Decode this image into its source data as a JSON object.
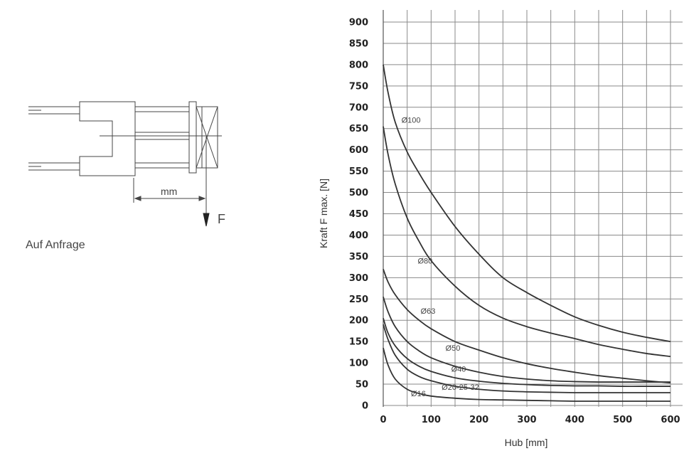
{
  "sketch": {
    "dimension_label": "mm",
    "force_label": "F",
    "note": "Auf Anfrage"
  },
  "chart_data": {
    "type": "line",
    "xlabel": "Hub [mm]",
    "ylabel": "Kraft F max. [N]",
    "xlim": [
      0,
      600
    ],
    "ylim": [
      0,
      900
    ],
    "x_ticks": [
      0,
      100,
      200,
      300,
      400,
      500,
      600
    ],
    "y_ticks": [
      0,
      50,
      100,
      150,
      200,
      250,
      300,
      350,
      400,
      450,
      500,
      550,
      600,
      650,
      700,
      750,
      800,
      850,
      900
    ],
    "x_grid": [
      0,
      50,
      100,
      150,
      200,
      250,
      300,
      350,
      400,
      450,
      500,
      550,
      600
    ],
    "grid": true,
    "series": [
      {
        "name": "Ø100",
        "label_at": [
          38,
          670
        ],
        "x": [
          0,
          10,
          25,
          50,
          75,
          100,
          150,
          200,
          250,
          300,
          350,
          400,
          450,
          500,
          550,
          600
        ],
        "y": [
          800,
          735,
          665,
          595,
          545,
          500,
          420,
          355,
          300,
          265,
          235,
          208,
          188,
          172,
          160,
          150
        ]
      },
      {
        "name": "Ø80",
        "label_at": [
          72,
          340
        ],
        "x": [
          0,
          10,
          25,
          50,
          75,
          100,
          150,
          200,
          250,
          300,
          350,
          400,
          450,
          500,
          550,
          600
        ],
        "y": [
          655,
          590,
          520,
          440,
          385,
          340,
          280,
          235,
          205,
          185,
          170,
          157,
          143,
          132,
          122,
          115
        ]
      },
      {
        "name": "Ø63",
        "label_at": [
          78,
          222
        ],
        "x": [
          0,
          10,
          25,
          50,
          75,
          100,
          150,
          200,
          250,
          300,
          350,
          400,
          450,
          500,
          550,
          600
        ],
        "y": [
          320,
          290,
          260,
          225,
          200,
          180,
          150,
          130,
          112,
          98,
          87,
          78,
          70,
          64,
          58,
          53
        ]
      },
      {
        "name": "Ø50",
        "label_at": [
          130,
          135
        ],
        "x": [
          0,
          10,
          25,
          50,
          75,
          100,
          150,
          200,
          250,
          300,
          350,
          400,
          450,
          500,
          550,
          600
        ],
        "y": [
          255,
          220,
          185,
          150,
          128,
          112,
          92,
          78,
          68,
          62,
          58,
          56,
          55,
          55,
          55,
          55
        ]
      },
      {
        "name": "Ø40",
        "label_at": [
          142,
          86
        ],
        "x": [
          0,
          10,
          25,
          50,
          75,
          100,
          150,
          200,
          250,
          300,
          350,
          400,
          450,
          500,
          550,
          600
        ],
        "y": [
          205,
          170,
          140,
          110,
          92,
          80,
          65,
          57,
          52,
          49,
          47,
          46,
          46,
          45,
          45,
          45
        ]
      },
      {
        "name": "Ø20-25-32",
        "label_at": [
          122,
          43
        ],
        "x": [
          0,
          10,
          25,
          50,
          75,
          100,
          150,
          200,
          250,
          300,
          350,
          400,
          450,
          500,
          550,
          600
        ],
        "y": [
          190,
          155,
          118,
          85,
          68,
          58,
          45,
          38,
          34,
          32,
          31,
          30,
          30,
          30,
          30,
          30
        ]
      },
      {
        "name": "Ø16",
        "label_at": [
          58,
          28
        ],
        "x": [
          0,
          10,
          25,
          50,
          75,
          100,
          150,
          200,
          250,
          300,
          350,
          400,
          450,
          500,
          550,
          600
        ],
        "y": [
          135,
          95,
          62,
          38,
          28,
          22,
          17,
          14,
          13,
          12,
          11,
          10,
          10,
          10,
          10,
          10
        ]
      }
    ]
  }
}
